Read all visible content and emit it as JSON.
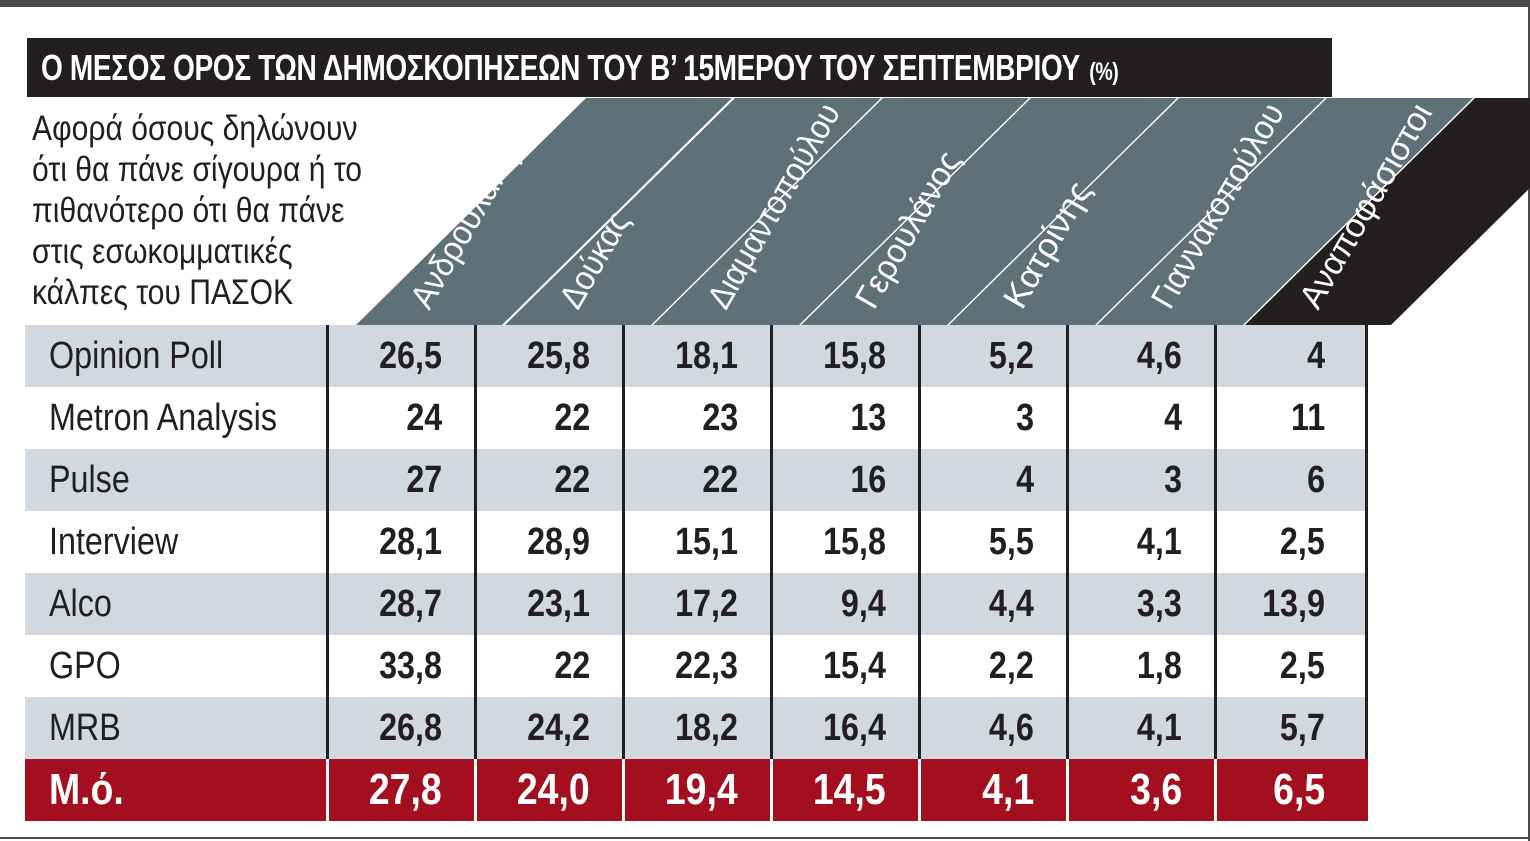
{
  "title": "Ο ΜΕΣΟΣ ΟΡΟΣ ΤΩΝ ΔΗΜΟΣΚΟΠΗΣΕΩΝ ΤΟΥ Β’ 15ΜΕΡΟΥ ΤΟΥ ΣΕΠΤΕΜΒΡΙΟΥ",
  "title_unit": "(%)",
  "subtitle_lines": [
    "Αφορά όσους δηλώνουν",
    "ότι θα πάνε σίγουρα ή το",
    "πιθανότερο ότι θα πάνε",
    "στις εσωκομματικές",
    "κάλπες του ΠΑΣΟΚ"
  ],
  "colors": {
    "title_bg": "#231f20",
    "header_bg": "#5f7178",
    "header_undecided_bg": "#231f20",
    "row_shade": "#d2d9de",
    "avg_row_bg": "#a30f1f"
  },
  "chart_data": {
    "type": "table",
    "columns": [
      "Ανδρουλάκης",
      "Δούκας",
      "Διαμαντοπούλου",
      "Γερουλάνος",
      "Κατρίνης",
      "Γιαννακοπούλου",
      "Αναποφάσιστοι"
    ],
    "rows": [
      {
        "label": "Opinion Poll",
        "values": [
          "26,5",
          "25,8",
          "18,1",
          "15,8",
          "5,2",
          "4,6",
          "4"
        ]
      },
      {
        "label": "Metron Analysis",
        "values": [
          "24",
          "22",
          "23",
          "13",
          "3",
          "4",
          "11"
        ]
      },
      {
        "label": "Pulse",
        "values": [
          "27",
          "22",
          "22",
          "16",
          "4",
          "3",
          "6"
        ]
      },
      {
        "label": "Interview",
        "values": [
          "28,1",
          "28,9",
          "15,1",
          "15,8",
          "5,5",
          "4,1",
          "2,5"
        ]
      },
      {
        "label": "Alco",
        "values": [
          "28,7",
          "23,1",
          "17,2",
          "9,4",
          "4,4",
          "3,3",
          "13,9"
        ]
      },
      {
        "label": "GPO",
        "values": [
          "33,8",
          "22",
          "22,3",
          "15,4",
          "2,2",
          "1,8",
          "2,5"
        ]
      },
      {
        "label": "MRB",
        "values": [
          "26,8",
          "24,2",
          "18,2",
          "16,4",
          "4,6",
          "4,1",
          "5,7"
        ]
      }
    ],
    "average": {
      "label": "Μ.ό.",
      "values": [
        "27,8",
        "24,0",
        "19,4",
        "14,5",
        "4,1",
        "3,6",
        "6,5"
      ]
    }
  }
}
